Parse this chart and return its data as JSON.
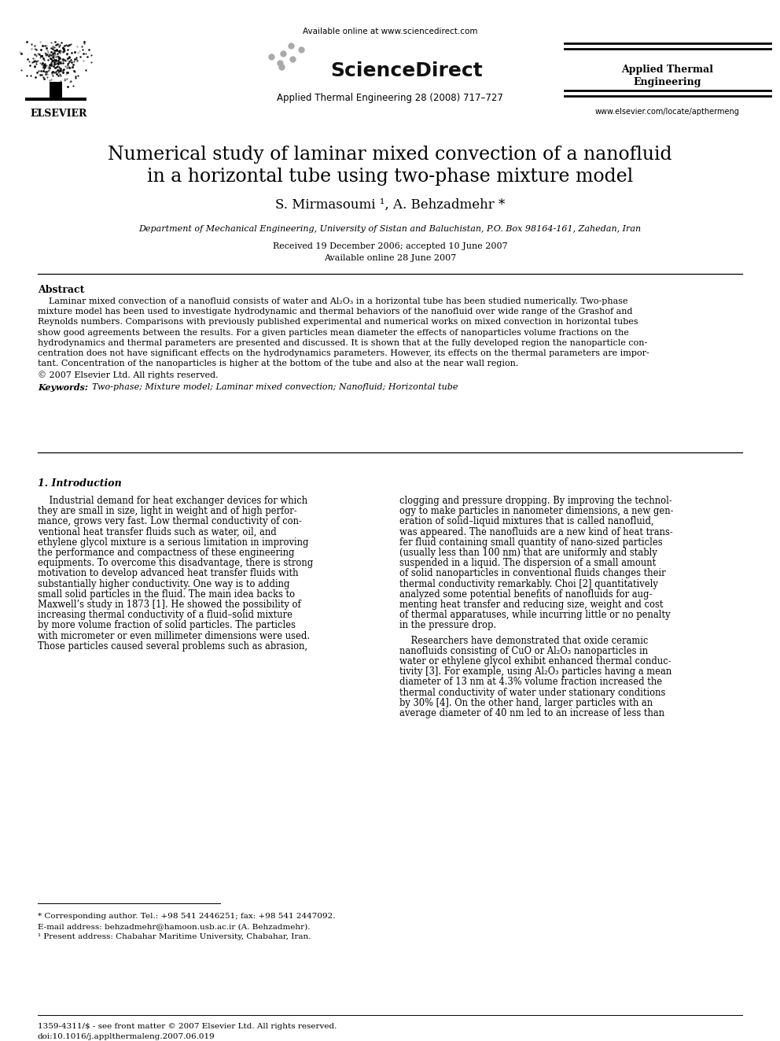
{
  "title_line1": "Numerical study of laminar mixed convection of a nanofluid",
  "title_line2": "in a horizontal tube using two-phase mixture model",
  "authors": "S. Mirmasoumi ¹, A. Behzadmehr *",
  "affiliation": "Department of Mechanical Engineering, University of Sistan and Baluchistan, P.O. Box 98164-161, Zahedan, Iran",
  "received": "Received 19 December 2006; accepted 10 June 2007",
  "available": "Available online 28 June 2007",
  "journal_top": "Available online at www.sciencedirect.com",
  "journal_name": "Applied Thermal Engineering 28 (2008) 717–727",
  "journal_right1": "Applied Thermal",
  "journal_right2": "Engineering",
  "journal_url": "www.elsevier.com/locate/apthermeng",
  "abstract_title": "Abstract",
  "copyright": "© 2007 Elsevier Ltd. All rights reserved.",
  "keywords_label": "Keywords:",
  "keywords_text": "  Two-phase; Mixture model; Laminar mixed convection; Nanofluid; Horizontal tube",
  "section1_title": "1. Introduction",
  "footnote1": "* Corresponding author. Tel.: +98 541 2446251; fax: +98 541 2447092.",
  "footnote2": "E-mail address: behzadmehr@hamoon.usb.ac.ir (A. Behzadmehr).",
  "footnote3": "¹ Present address: Chabahar Maritime University, Chabahar, Iran.",
  "footer1": "1359-4311/$ - see front matter © 2007 Elsevier Ltd. All rights reserved.",
  "footer2": "doi:10.1016/j.applthermaleng.2007.06.019",
  "abstract_lines": [
    "    Laminar mixed convection of a nanofluid consists of water and Al₂O₃ in a horizontal tube has been studied numerically. Two-phase",
    "mixture model has been used to investigate hydrodynamic and thermal behaviors of the nanofluid over wide range of the Grashof and",
    "Reynolds numbers. Comparisons with previously published experimental and numerical works on mixed convection in horizontal tubes",
    "show good agreements between the results. For a given particles mean diameter the effects of nanoparticles volume fractions on the",
    "hydrodynamics and thermal parameters are presented and discussed. It is shown that at the fully developed region the nanoparticle con-",
    "centration does not have significant effects on the hydrodynamics parameters. However, its effects on the thermal parameters are impor-",
    "tant. Concentration of the nanoparticles is higher at the bottom of the tube and also at the near wall region."
  ],
  "col1_lines": [
    "    Industrial demand for heat exchanger devices for which",
    "they are small in size, light in weight and of high perfor-",
    "mance, grows very fast. Low thermal conductivity of con-",
    "ventional heat transfer fluids such as water, oil, and",
    "ethylene glycol mixture is a serious limitation in improving",
    "the performance and compactness of these engineering",
    "equipments. To overcome this disadvantage, there is strong",
    "motivation to develop advanced heat transfer fluids with",
    "substantially higher conductivity. One way is to adding",
    "small solid particles in the fluid. The main idea backs to",
    "Maxwell’s study in 1873 [1]. He showed the possibility of",
    "increasing thermal conductivity of a fluid–solid mixture",
    "by more volume fraction of solid particles. The particles",
    "with micrometer or even millimeter dimensions were used.",
    "Those particles caused several problems such as abrasion,"
  ],
  "col2_lines_p1": [
    "clogging and pressure dropping. By improving the technol-",
    "ogy to make particles in nanometer dimensions, a new gen-",
    "eration of solid–liquid mixtures that is called nanofluid,",
    "was appeared. The nanofluids are a new kind of heat trans-",
    "fer fluid containing small quantity of nano-sized particles",
    "(usually less than 100 nm) that are uniformly and stably",
    "suspended in a liquid. The dispersion of a small amount",
    "of solid nanoparticles in conventional fluids changes their",
    "thermal conductivity remarkably. Choi [2] quantitatively",
    "analyzed some potential benefits of nanofluids for aug-",
    "menting heat transfer and reducing size, weight and cost",
    "of thermal apparatuses, while incurring little or no penalty",
    "in the pressure drop."
  ],
  "col2_lines_p2": [
    "    Researchers have demonstrated that oxide ceramic",
    "nanofluids consisting of CuO or Al₂O₃ nanoparticles in",
    "water or ethylene glycol exhibit enhanced thermal conduc-",
    "tivity [3]. For example, using Al₂O₃ particles having a mean",
    "diameter of 13 nm at 4.3% volume fraction increased the",
    "thermal conductivity of water under stationary conditions",
    "by 30% [4]. On the other hand, larger particles with an",
    "average diameter of 40 nm led to an increase of less than"
  ]
}
